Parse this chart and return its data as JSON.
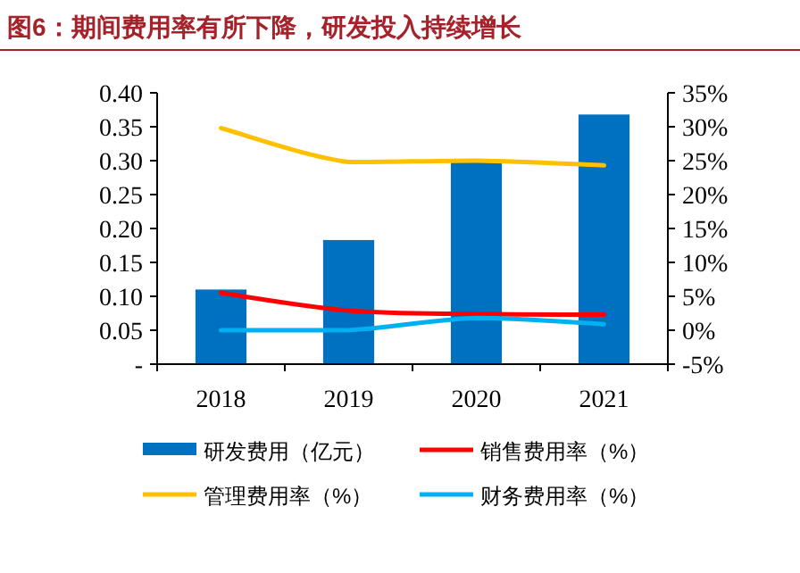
{
  "chart_data": {
    "type": "bar",
    "title": "图6：期间费用率有所下降，研发投入持续增长",
    "categories": [
      "2018",
      "2019",
      "2020",
      "2021"
    ],
    "series": [
      {
        "name": "研发费用（亿元）",
        "color": "#0070c0",
        "values": [
          0.11,
          0.183,
          0.3,
          0.368
        ]
      },
      {
        "name": "销售费用率（%）",
        "type": "line",
        "axis": "y2",
        "color": "#ff0000",
        "values": [
          5.5,
          2.9,
          2.4,
          2.3
        ]
      },
      {
        "name": "管理费用率（%）",
        "type": "line",
        "axis": "y2",
        "color": "#ffc000",
        "values": [
          29.8,
          24.8,
          25.0,
          24.3
        ]
      },
      {
        "name": "财务费用率（%）",
        "type": "line",
        "axis": "y2",
        "color": "#00b0f0",
        "values": [
          0.0,
          0.0,
          1.8,
          0.9
        ]
      }
    ],
    "ylim": [
      0,
      0.4
    ],
    "yticks": [
      {
        "value": 0,
        "label": "-"
      },
      {
        "value": 0.05,
        "label": "0.05"
      },
      {
        "value": 0.1,
        "label": "0.10"
      },
      {
        "value": 0.15,
        "label": "0.15"
      },
      {
        "value": 0.2,
        "label": "0.20"
      },
      {
        "value": 0.25,
        "label": "0.25"
      },
      {
        "value": 0.3,
        "label": "0.30"
      },
      {
        "value": 0.35,
        "label": "0.35"
      },
      {
        "value": 0.4,
        "label": "0.40"
      }
    ],
    "y2lim": [
      -5,
      35
    ],
    "y2ticks": [
      {
        "value": -5,
        "label": "-5%"
      },
      {
        "value": 0,
        "label": "0%"
      },
      {
        "value": 5,
        "label": "5%"
      },
      {
        "value": 10,
        "label": "10%"
      },
      {
        "value": 15,
        "label": "15%"
      },
      {
        "value": 20,
        "label": "20%"
      },
      {
        "value": 25,
        "label": "25%"
      },
      {
        "value": 30,
        "label": "30%"
      },
      {
        "value": 35,
        "label": "35%"
      }
    ],
    "grid": false,
    "legend": "bottom"
  }
}
